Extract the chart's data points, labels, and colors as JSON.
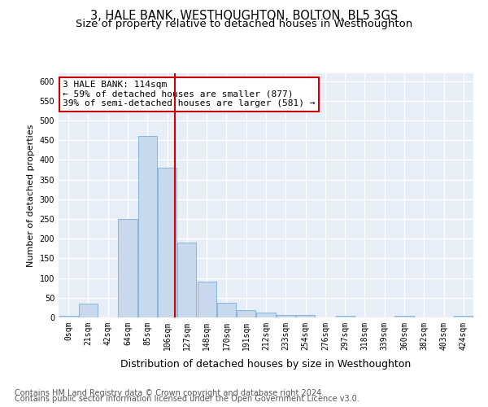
{
  "title": "3, HALE BANK, WESTHOUGHTON, BOLTON, BL5 3GS",
  "subtitle": "Size of property relative to detached houses in Westhoughton",
  "xlabel": "Distribution of detached houses by size in Westhoughton",
  "ylabel": "Number of detached properties",
  "bar_color": "#c8d9ee",
  "bar_edge_color": "#7aaed4",
  "categories": [
    "0sqm",
    "21sqm",
    "42sqm",
    "64sqm",
    "85sqm",
    "106sqm",
    "127sqm",
    "148sqm",
    "170sqm",
    "191sqm",
    "212sqm",
    "233sqm",
    "254sqm",
    "276sqm",
    "297sqm",
    "318sqm",
    "339sqm",
    "360sqm",
    "382sqm",
    "403sqm",
    "424sqm"
  ],
  "values": [
    5,
    35,
    0,
    250,
    460,
    380,
    190,
    90,
    38,
    18,
    12,
    6,
    6,
    0,
    5,
    0,
    0,
    5,
    0,
    0,
    5
  ],
  "vline_color": "#cc0000",
  "annotation_line1": "3 HALE BANK: 114sqm",
  "annotation_line2": "← 59% of detached houses are smaller (877)",
  "annotation_line3": "39% of semi-detached houses are larger (581) →",
  "annotation_box_color": "#ffffff",
  "annotation_box_edge_color": "#cc0000",
  "ylim": [
    0,
    620
  ],
  "yticks": [
    0,
    50,
    100,
    150,
    200,
    250,
    300,
    350,
    400,
    450,
    500,
    550,
    600
  ],
  "background_color": "#e8eef8",
  "grid_color": "#ffffff",
  "footer_line1": "Contains HM Land Registry data © Crown copyright and database right 2024.",
  "footer_line2": "Contains public sector information licensed under the Open Government Licence v3.0.",
  "title_fontsize": 10.5,
  "subtitle_fontsize": 9.5,
  "xlabel_fontsize": 9,
  "ylabel_fontsize": 8,
  "tick_fontsize": 7,
  "annot_fontsize": 8,
  "footer_fontsize": 7
}
